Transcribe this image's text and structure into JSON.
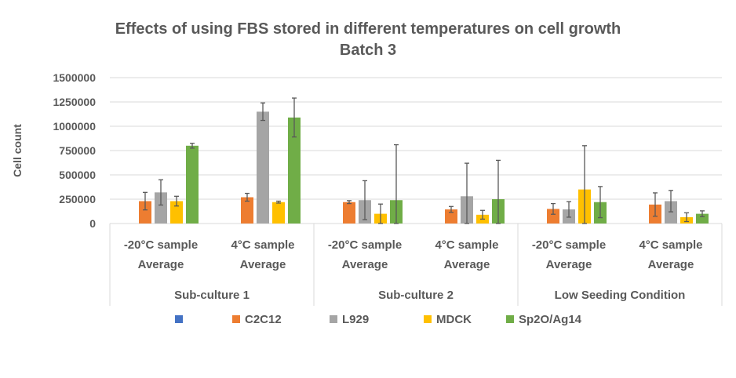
{
  "chart_data": {
    "type": "bar",
    "title": "Effects of using FBS stored in different temperatures on cell growth",
    "subtitle": "Batch 3",
    "ylabel": "Cell count",
    "ylim": [
      0,
      1500000
    ],
    "yticks": [
      "0",
      "250000",
      "500000",
      "750000",
      "1000000",
      "1250000",
      "1500000"
    ],
    "categories": [
      [
        "-20°C sample",
        "Average"
      ],
      [
        "4°C sample",
        "Average"
      ],
      [
        "-20°C sample",
        "Average"
      ],
      [
        "4°C sample",
        "Average"
      ],
      [
        "-20°C sample",
        "Average"
      ],
      [
        "4°C sample",
        "Average"
      ]
    ],
    "groups": [
      "Sub-culture 1",
      "Sub-culture 2",
      "Low Seeding Condition"
    ],
    "legend_position": "bottom",
    "series": [
      {
        "name": "",
        "color": "#4472C4",
        "values": [
          0,
          0,
          0,
          0,
          0,
          0
        ],
        "errors": [
          0,
          0,
          0,
          0,
          0,
          0
        ]
      },
      {
        "name": "C2C12",
        "color": "#ED7D31",
        "values": [
          230000,
          270000,
          220000,
          145000,
          150000,
          195000
        ],
        "errors": [
          90000,
          40000,
          15000,
          30000,
          55000,
          120000
        ]
      },
      {
        "name": "L929",
        "color": "#A5A5A5",
        "values": [
          320000,
          1150000,
          240000,
          280000,
          145000,
          230000
        ],
        "errors": [
          130000,
          90000,
          200000,
          340000,
          80000,
          110000
        ]
      },
      {
        "name": "MDCK",
        "color": "#FFC000",
        "values": [
          230000,
          220000,
          100000,
          90000,
          350000,
          65000
        ],
        "errors": [
          50000,
          10000,
          100000,
          45000,
          450000,
          45000
        ]
      },
      {
        "name": "Sp2O/Ag14",
        "color": "#70AD47",
        "values": [
          800000,
          1090000,
          240000,
          250000,
          220000,
          100000
        ],
        "errors": [
          25000,
          200000,
          570000,
          400000,
          160000,
          30000
        ]
      }
    ]
  }
}
